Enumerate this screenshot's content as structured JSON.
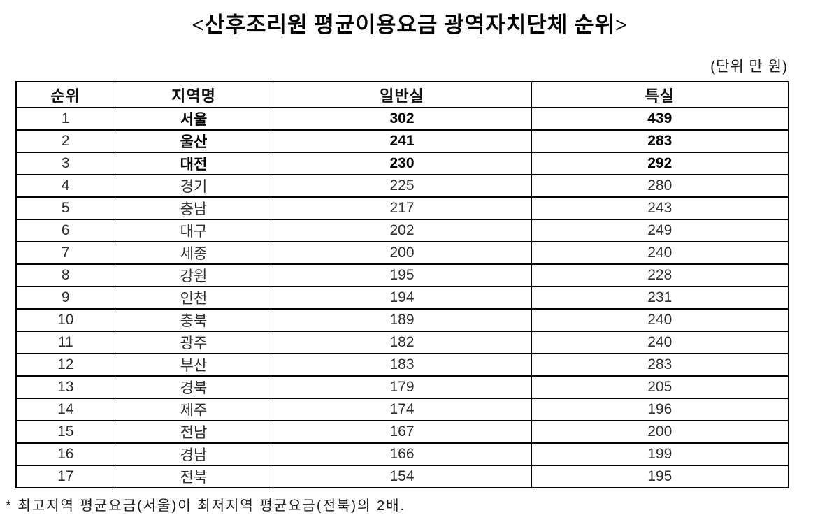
{
  "title": "<산후조리원 평균이용요금 광역자치단체 순위>",
  "unit_note": "(단위 만 원)",
  "table": {
    "headers": {
      "rank": "순위",
      "region": "지역명",
      "standard": "일반실",
      "special": "특실"
    },
    "rows": [
      {
        "rank": "1",
        "region": "서울",
        "standard": "302",
        "special": "439"
      },
      {
        "rank": "2",
        "region": "울산",
        "standard": "241",
        "special": "283"
      },
      {
        "rank": "3",
        "region": "대전",
        "standard": "230",
        "special": "292"
      },
      {
        "rank": "4",
        "region": "경기",
        "standard": "225",
        "special": "280"
      },
      {
        "rank": "5",
        "region": "충남",
        "standard": "217",
        "special": "243"
      },
      {
        "rank": "6",
        "region": "대구",
        "standard": "202",
        "special": "249"
      },
      {
        "rank": "7",
        "region": "세종",
        "standard": "200",
        "special": "240"
      },
      {
        "rank": "8",
        "region": "강원",
        "standard": "195",
        "special": "228"
      },
      {
        "rank": "9",
        "region": "인천",
        "standard": "194",
        "special": "231"
      },
      {
        "rank": "10",
        "region": "충북",
        "standard": "189",
        "special": "240"
      },
      {
        "rank": "11",
        "region": "광주",
        "standard": "182",
        "special": "240"
      },
      {
        "rank": "12",
        "region": "부산",
        "standard": "183",
        "special": "283"
      },
      {
        "rank": "13",
        "region": "경북",
        "standard": "179",
        "special": "205"
      },
      {
        "rank": "14",
        "region": "제주",
        "standard": "174",
        "special": "196"
      },
      {
        "rank": "15",
        "region": "전남",
        "standard": "167",
        "special": "200"
      },
      {
        "rank": "16",
        "region": "경남",
        "standard": "166",
        "special": "199"
      },
      {
        "rank": "17",
        "region": "전북",
        "standard": "154",
        "special": "195"
      }
    ]
  },
  "footnote": "* 최고지역 평균요금(서울)이 최저지역 평균요금(전북)의 2배.",
  "colors": {
    "background": "#ffffff",
    "border": "#000000",
    "text_regular": "#2e2e2e",
    "text_bold": "#000000"
  }
}
